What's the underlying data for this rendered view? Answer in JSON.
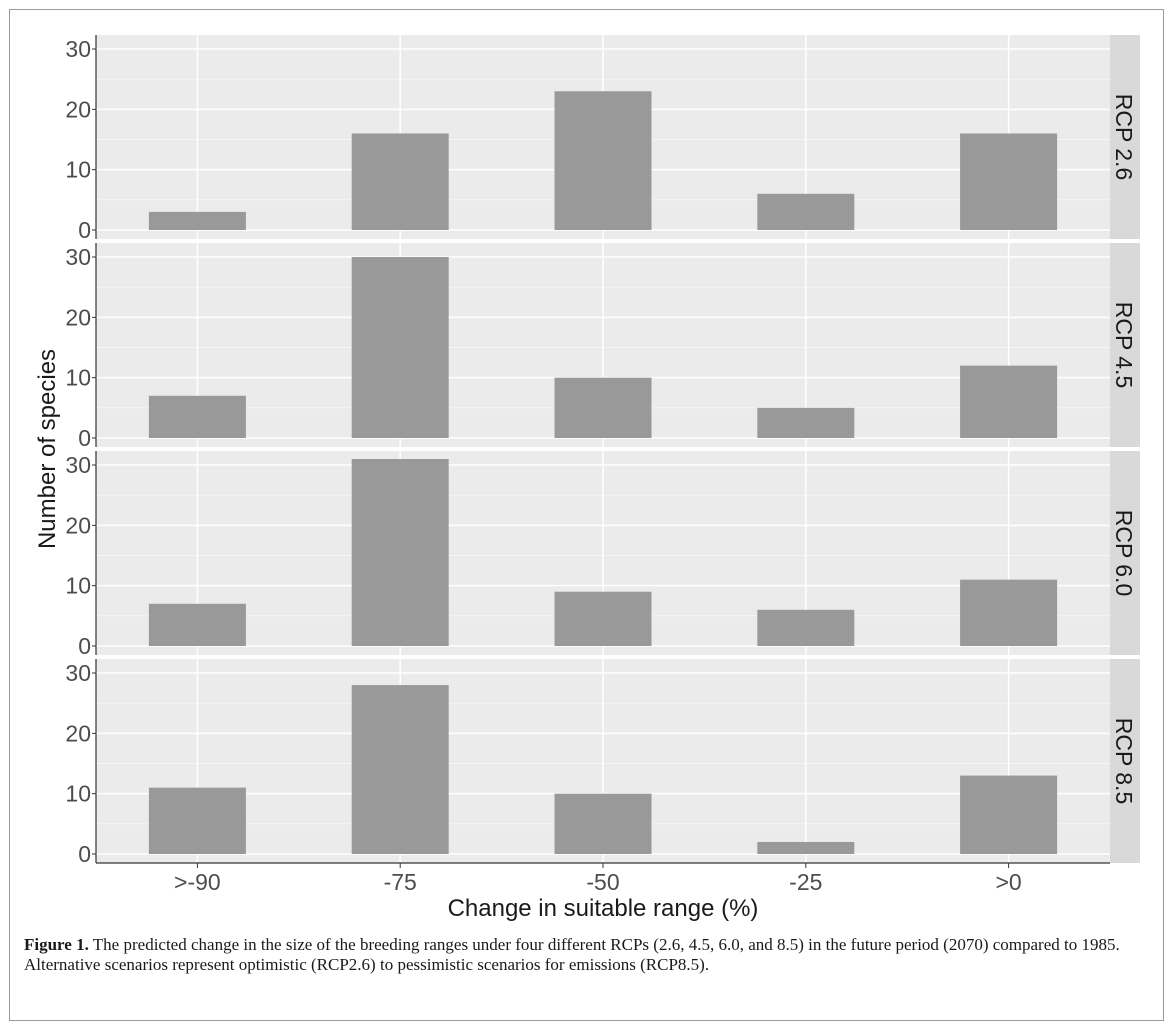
{
  "chart_data": {
    "type": "bar",
    "layout": "faceted-rows",
    "categories": [
      ">-90",
      "-75",
      "-50",
      "-25",
      ">0"
    ],
    "xlabel": "Change in suitable range (%)",
    "ylabel": "Number of species",
    "ylim": [
      0,
      31
    ],
    "yticks": [
      0,
      10,
      20,
      30
    ],
    "panel_bg": "#ebebeb",
    "strip_bg": "#d9d9d9",
    "bar_color": "#999999",
    "facets": [
      {
        "label": "RCP 2.6",
        "values": [
          3,
          16,
          23,
          6,
          16
        ]
      },
      {
        "label": "RCP 4.5",
        "values": [
          7,
          30,
          10,
          5,
          12
        ]
      },
      {
        "label": "RCP 6.0",
        "values": [
          7,
          31,
          9,
          6,
          11
        ]
      },
      {
        "label": "RCP 8.5",
        "values": [
          11,
          28,
          10,
          2,
          13
        ]
      }
    ]
  },
  "caption": {
    "label": "Figure 1.",
    "text": " The predicted change in the size of the breeding ranges under four different RCPs (2.6, 4.5, 6.0, and 8.5) in the future period (2070) compared to 1985. Alternative scenarios represent optimistic (RCP2.6) to pessimistic scenarios for emissions (RCP8.5)."
  }
}
